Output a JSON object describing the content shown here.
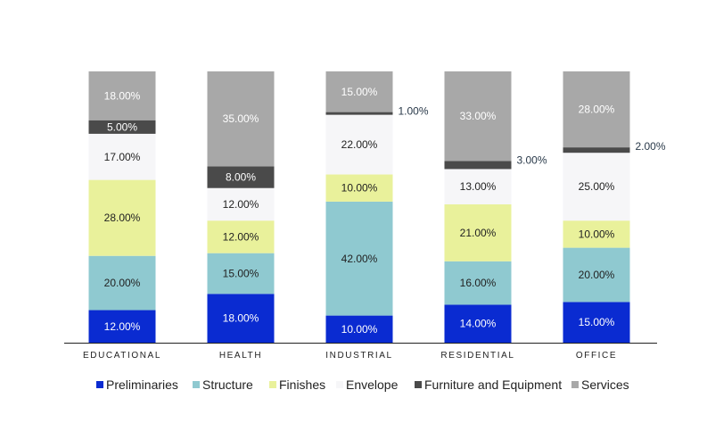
{
  "chart_data": {
    "type": "bar",
    "stacked": true,
    "percent_stacked": true,
    "categories": [
      "EDUCATIONAL",
      "HEALTH",
      "INDUSTRIAL",
      "RESIDENTIAL",
      "OFFICE"
    ],
    "series": [
      {
        "name": "Preliminaries",
        "color": "#0a2bd1",
        "values": [
          12,
          18,
          10,
          14,
          15
        ],
        "labels": [
          "12.00%",
          "18.00%",
          "10.00%",
          "14.00%",
          "15.00%"
        ]
      },
      {
        "name": "Structure",
        "color": "#8fc9d0",
        "values": [
          20,
          15,
          42,
          16,
          20
        ],
        "labels": [
          "20.00%",
          "15.00%",
          "42.00%",
          "16.00%",
          "20.00%"
        ]
      },
      {
        "name": "Finishes",
        "color": "#e9f19b",
        "values": [
          28,
          12,
          10,
          21,
          10
        ],
        "labels": [
          "28.00%",
          "12.00%",
          "10.00%",
          "21.00%",
          "10.00%"
        ]
      },
      {
        "name": "Envelope",
        "color": "#f6f6f8",
        "values": [
          17,
          12,
          22,
          13,
          25
        ],
        "labels": [
          "17.00%",
          "12.00%",
          "22.00%",
          "13.00%",
          "25.00%"
        ]
      },
      {
        "name": "Furniture and Equipment",
        "color": "#4a4a4a",
        "values": [
          5,
          8,
          1,
          3,
          2
        ],
        "labels": [
          "5.00%",
          "8.00%",
          "1.00%",
          "3.00%",
          "2.00%"
        ]
      },
      {
        "name": "Services",
        "color": "#a8a8a8",
        "values": [
          18,
          35,
          15,
          33,
          28
        ],
        "labels": [
          "18.00%",
          "35.00%",
          "15.00%",
          "33.00%",
          "28.00%"
        ]
      }
    ],
    "ylim": [
      0,
      100
    ],
    "title": "",
    "xlabel": "",
    "ylabel": "",
    "grid": false,
    "legend_position": "bottom"
  }
}
